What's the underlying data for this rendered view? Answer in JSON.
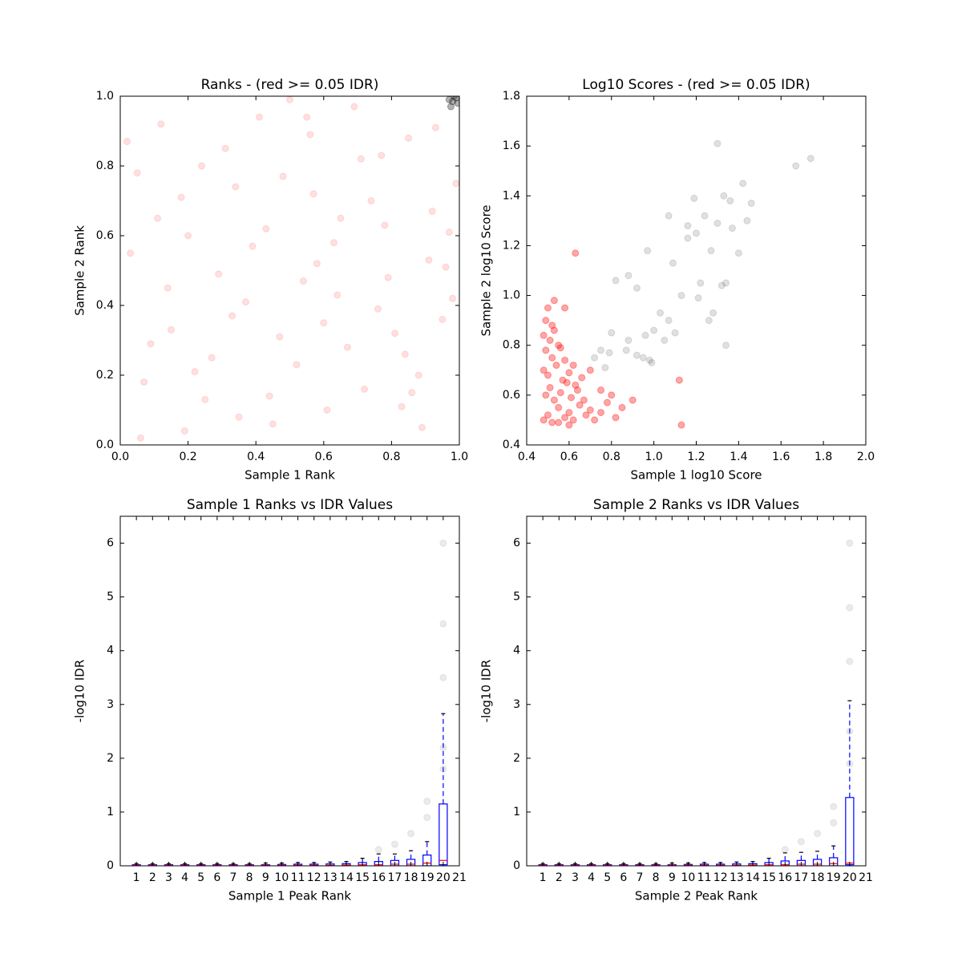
{
  "chart_data": [
    {
      "type": "scatter",
      "title": "Ranks - (red >= 0.05 IDR)",
      "xlabel": "Sample 1 Rank",
      "ylabel": "Sample 2 Rank",
      "xlim": [
        0,
        1
      ],
      "ylim": [
        0,
        1
      ],
      "xticks": [
        {
          "value": 0,
          "label": "0.0"
        },
        0.2,
        0.4,
        0.6,
        0.8,
        {
          "value": 1,
          "label": "1.0"
        }
      ],
      "yticks": [
        {
          "value": 0,
          "label": "0.0"
        },
        0.2,
        0.4,
        0.6,
        0.8,
        {
          "value": 1,
          "label": "1.0"
        }
      ],
      "series": [
        {
          "color": "#ff0000",
          "alpha": 0.12,
          "x": [
            0.03,
            0.12,
            0.25,
            0.37,
            0.48,
            0.56,
            0.67,
            0.78,
            0.89,
            0.95,
            0.07,
            0.18,
            0.29,
            0.41,
            0.52,
            0.63,
            0.71,
            0.83,
            0.92,
            0.98,
            0.02,
            0.15,
            0.22,
            0.34,
            0.45,
            0.58,
            0.69,
            0.76,
            0.86,
            0.97,
            0.09,
            0.19,
            0.31,
            0.43,
            0.54,
            0.61,
            0.74,
            0.81,
            0.93,
            0.05,
            0.14,
            0.27,
            0.39,
            0.5,
            0.6,
            0.72,
            0.85,
            0.91,
            0.11,
            0.24,
            0.35,
            0.47,
            0.57,
            0.65,
            0.79,
            0.88,
            0.99,
            0.06,
            0.2,
            0.33,
            0.44,
            0.55,
            0.64,
            0.77,
            0.84,
            0.96
          ],
          "y": [
            0.55,
            0.92,
            0.13,
            0.41,
            0.77,
            0.89,
            0.28,
            0.63,
            0.05,
            0.36,
            0.18,
            0.71,
            0.49,
            0.94,
            0.23,
            0.58,
            0.82,
            0.11,
            0.67,
            0.42,
            0.87,
            0.33,
            0.21,
            0.74,
            0.06,
            0.52,
            0.97,
            0.39,
            0.15,
            0.61,
            0.29,
            0.04,
            0.85,
            0.62,
            0.47,
            0.1,
            0.7,
            0.32,
            0.91,
            0.78,
            0.45,
            0.25,
            0.57,
            0.99,
            0.35,
            0.16,
            0.88,
            0.53,
            0.65,
            0.8,
            0.08,
            0.31,
            0.72,
            0.65,
            0.48,
            0.2,
            0.75,
            0.02,
            0.6,
            0.37,
            0.14,
            0.94,
            0.43,
            0.83,
            0.26,
            0.51
          ]
        },
        {
          "color": "#000000",
          "alpha": 0.3,
          "x": [
            0.97,
            0.98,
            0.99,
            0.985,
            0.995,
            0.975
          ],
          "y": [
            0.99,
            0.985,
            0.995,
            1.0,
            0.98,
            0.97
          ]
        }
      ]
    },
    {
      "type": "scatter",
      "title": "Log10 Scores - (red >= 0.05 IDR)",
      "xlabel": "Sample 1 log10 Score",
      "ylabel": "Sample 2 log10 Score",
      "xlim": [
        0.4,
        2.0
      ],
      "ylim": [
        0.4,
        1.8
      ],
      "xticks": [
        0.4,
        0.6,
        0.8,
        {
          "value": 1,
          "label": "1.0"
        },
        1.2,
        1.4,
        1.6,
        1.8,
        {
          "value": 2,
          "label": "2.0"
        }
      ],
      "yticks": [
        0.4,
        0.6,
        0.8,
        {
          "value": 1,
          "label": "1.0"
        },
        1.2,
        1.4,
        1.6,
        1.8
      ],
      "series": [
        {
          "color": "#ff0000",
          "alpha": 0.35,
          "x": [
            0.48,
            0.5,
            0.52,
            0.55,
            0.58,
            0.6,
            0.62,
            0.65,
            0.68,
            0.7,
            0.72,
            0.75,
            0.78,
            0.49,
            0.51,
            0.53,
            0.56,
            0.59,
            0.61,
            0.64,
            0.67,
            0.48,
            0.5,
            0.54,
            0.57,
            0.6,
            0.63,
            0.66,
            0.49,
            0.52,
            0.55,
            0.58,
            0.62,
            0.48,
            0.51,
            0.53,
            0.56,
            0.49,
            0.5,
            0.52,
            0.63,
            0.53,
            0.58,
            0.9,
            0.85,
            0.82,
            0.75,
            1.12,
            1.13,
            0.8,
            0.7,
            0.55,
            0.6
          ],
          "y": [
            0.5,
            0.52,
            0.49,
            0.55,
            0.51,
            0.53,
            0.5,
            0.56,
            0.52,
            0.54,
            0.5,
            0.53,
            0.57,
            0.6,
            0.63,
            0.58,
            0.61,
            0.65,
            0.59,
            0.62,
            0.58,
            0.7,
            0.68,
            0.72,
            0.66,
            0.69,
            0.64,
            0.67,
            0.78,
            0.75,
            0.8,
            0.74,
            0.72,
            0.84,
            0.82,
            0.86,
            0.79,
            0.9,
            0.95,
            0.88,
            1.17,
            0.98,
            0.95,
            0.58,
            0.55,
            0.51,
            0.62,
            0.66,
            0.48,
            0.6,
            0.7,
            0.49,
            0.48
          ]
        },
        {
          "color": "#000000",
          "alpha": 0.12,
          "x": [
            1.3,
            1.74,
            1.67,
            1.42,
            1.33,
            1.19,
            1.36,
            1.46,
            1.07,
            1.24,
            1.3,
            1.16,
            1.37,
            1.44,
            1.2,
            1.16,
            1.4,
            1.27,
            0.97,
            1.09,
            1.34,
            1.32,
            1.22,
            0.88,
            0.82,
            0.92,
            1.13,
            1.21,
            1.28,
            1.26,
            1.03,
            1.07,
            0.96,
            1.0,
            1.1,
            1.34,
            0.88,
            0.79,
            0.87,
            0.92,
            0.95,
            0.99,
            0.77,
            0.8,
            1.05,
            0.98,
            0.75,
            0.72
          ],
          "y": [
            1.61,
            1.55,
            1.52,
            1.45,
            1.4,
            1.39,
            1.38,
            1.37,
            1.32,
            1.32,
            1.29,
            1.28,
            1.27,
            1.3,
            1.25,
            1.23,
            1.17,
            1.18,
            1.18,
            1.13,
            1.05,
            1.04,
            1.05,
            1.08,
            1.06,
            1.03,
            1.0,
            0.99,
            0.93,
            0.9,
            0.93,
            0.9,
            0.84,
            0.86,
            0.85,
            0.8,
            0.82,
            0.77,
            0.78,
            0.76,
            0.75,
            0.73,
            0.71,
            0.85,
            0.82,
            0.74,
            0.78,
            0.75
          ]
        }
      ]
    },
    {
      "type": "box",
      "title": "Sample 1 Ranks vs IDR Values",
      "xlabel": "Sample 1 Peak Rank",
      "ylabel": "-log10 IDR",
      "xlim": [
        0,
        21
      ],
      "ylim": [
        0,
        6.5
      ],
      "xticks": [
        1,
        2,
        3,
        4,
        5,
        6,
        7,
        8,
        9,
        10,
        11,
        12,
        13,
        14,
        15,
        16,
        17,
        18,
        19,
        20,
        21
      ],
      "yticks": [
        0,
        1,
        2,
        3,
        4,
        5,
        6
      ],
      "box_color": "#0000ff",
      "median_color": "#ff0000",
      "cap_color": "#000000",
      "positions": [
        1,
        2,
        3,
        4,
        5,
        6,
        7,
        8,
        9,
        10,
        11,
        12,
        13,
        14,
        15,
        16,
        17,
        18,
        19,
        20
      ],
      "whislo": [
        0,
        0,
        0,
        0,
        0,
        0,
        0,
        0,
        0,
        0,
        0,
        0,
        0,
        0,
        0,
        0,
        0,
        0,
        0,
        0
      ],
      "q1": [
        0,
        0,
        0,
        0,
        0,
        0,
        0,
        0,
        0,
        0,
        0,
        0,
        0,
        0,
        0,
        0,
        0,
        0,
        0,
        0.02
      ],
      "median": [
        0.01,
        0.01,
        0.01,
        0.01,
        0.01,
        0.01,
        0.01,
        0.01,
        0.01,
        0.01,
        0.01,
        0.01,
        0.01,
        0.015,
        0.02,
        0.02,
        0.03,
        0.03,
        0.05,
        0.1
      ],
      "q3": [
        0.02,
        0.02,
        0.02,
        0.02,
        0.02,
        0.02,
        0.02,
        0.02,
        0.02,
        0.025,
        0.03,
        0.03,
        0.035,
        0.04,
        0.06,
        0.08,
        0.1,
        0.12,
        0.2,
        1.15
      ],
      "whishi": [
        0.04,
        0.04,
        0.04,
        0.04,
        0.04,
        0.04,
        0.04,
        0.04,
        0.05,
        0.05,
        0.06,
        0.06,
        0.07,
        0.08,
        0.14,
        0.22,
        0.22,
        0.28,
        0.45,
        2.83
      ],
      "points": {
        "color": "#000000",
        "alpha": 0.08,
        "x": [
          20,
          20,
          20,
          20,
          20,
          19,
          19,
          18,
          17,
          16
        ],
        "y": [
          6,
          4.5,
          3.5,
          2.2,
          1.8,
          1.2,
          0.9,
          0.6,
          0.4,
          0.3
        ]
      }
    },
    {
      "type": "box",
      "title": "Sample 2 Ranks vs IDR Values",
      "xlabel": "Sample 2 Peak Rank",
      "ylabel": "-log10 IDR",
      "xlim": [
        0,
        21
      ],
      "ylim": [
        0,
        6.5
      ],
      "xticks": [
        1,
        2,
        3,
        4,
        5,
        6,
        7,
        8,
        9,
        10,
        11,
        12,
        13,
        14,
        15,
        16,
        17,
        18,
        19,
        20,
        21
      ],
      "yticks": [
        0,
        1,
        2,
        3,
        4,
        5,
        6
      ],
      "box_color": "#0000ff",
      "median_color": "#ff0000",
      "cap_color": "#000000",
      "positions": [
        1,
        2,
        3,
        4,
        5,
        6,
        7,
        8,
        9,
        10,
        11,
        12,
        13,
        14,
        15,
        16,
        17,
        18,
        19,
        20
      ],
      "whislo": [
        0,
        0,
        0,
        0,
        0,
        0,
        0,
        0,
        0,
        0,
        0,
        0,
        0,
        0,
        0,
        0,
        0,
        0,
        0,
        0
      ],
      "q1": [
        0,
        0,
        0,
        0,
        0,
        0,
        0,
        0,
        0,
        0,
        0,
        0,
        0,
        0,
        0,
        0,
        0,
        0,
        0,
        0.02
      ],
      "median": [
        0.01,
        0.01,
        0.01,
        0.01,
        0.01,
        0.01,
        0.01,
        0.01,
        0.01,
        0.01,
        0.01,
        0.01,
        0.01,
        0.015,
        0.02,
        0.02,
        0.03,
        0.03,
        0.04,
        0.05
      ],
      "q3": [
        0.02,
        0.02,
        0.02,
        0.02,
        0.02,
        0.02,
        0.02,
        0.02,
        0.02,
        0.025,
        0.03,
        0.03,
        0.035,
        0.04,
        0.06,
        0.09,
        0.1,
        0.12,
        0.15,
        1.27
      ],
      "whishi": [
        0.04,
        0.04,
        0.04,
        0.04,
        0.04,
        0.04,
        0.04,
        0.04,
        0.05,
        0.05,
        0.06,
        0.06,
        0.07,
        0.08,
        0.14,
        0.24,
        0.25,
        0.27,
        0.37,
        3.07
      ],
      "points": {
        "color": "#000000",
        "alpha": 0.08,
        "x": [
          20,
          20,
          20,
          20,
          20,
          19,
          19,
          18,
          17,
          16
        ],
        "y": [
          6,
          4.8,
          3.8,
          2.5,
          1.9,
          1.1,
          0.8,
          0.6,
          0.45,
          0.3
        ]
      }
    }
  ]
}
